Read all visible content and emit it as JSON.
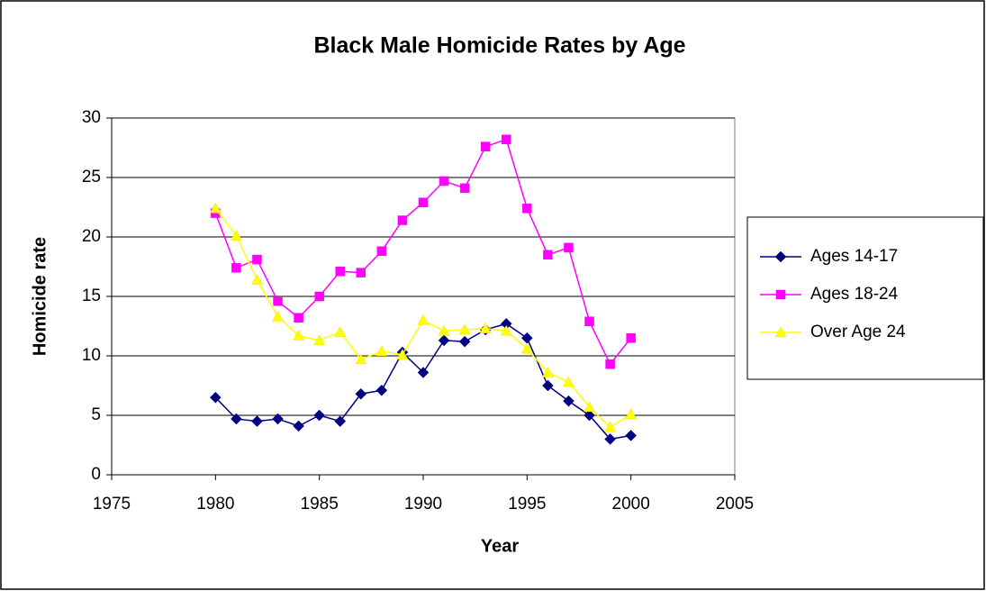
{
  "chart_data": {
    "type": "line",
    "title": "Black Male Homicide Rates by Age",
    "x_label": "Year",
    "y_label": "Homicide rate",
    "x": [
      1980,
      1981,
      1982,
      1983,
      1984,
      1985,
      1986,
      1987,
      1988,
      1989,
      1990,
      1991,
      1992,
      1993,
      1994,
      1995,
      1996,
      1997,
      1998,
      1999,
      2000
    ],
    "series": [
      {
        "name": "Ages 14-17",
        "color": "#000080",
        "marker": "diamond",
        "values": [
          6.5,
          4.7,
          4.5,
          4.7,
          4.1,
          5.0,
          4.5,
          6.8,
          7.1,
          10.3,
          8.6,
          11.3,
          11.2,
          12.2,
          12.7,
          11.5,
          7.5,
          6.2,
          5.0,
          3.0,
          3.3
        ]
      },
      {
        "name": "Ages 18-24",
        "color": "#ff00ff",
        "marker": "square",
        "values": [
          22.0,
          17.4,
          18.1,
          14.6,
          13.2,
          15.0,
          17.1,
          17.0,
          18.8,
          21.4,
          22.9,
          24.7,
          24.1,
          27.6,
          28.2,
          22.4,
          18.5,
          19.1,
          12.9,
          9.3,
          11.5
        ]
      },
      {
        "name": "Over Age 24",
        "color": "#ffff00",
        "marker": "triangle",
        "values": [
          22.4,
          20.1,
          16.4,
          13.3,
          11.7,
          11.3,
          12.0,
          9.7,
          10.4,
          10.1,
          13.0,
          12.1,
          12.2,
          12.3,
          12.1,
          10.6,
          8.6,
          7.8,
          5.7,
          4.0,
          5.1
        ]
      }
    ],
    "xlim": [
      1975,
      2005
    ],
    "xticks": [
      1975,
      1980,
      1985,
      1990,
      1995,
      2000,
      2005
    ],
    "ylim": [
      0,
      30
    ],
    "yticks": [
      0,
      5,
      10,
      15,
      20,
      25,
      30
    ],
    "grid": true,
    "legend": "right"
  }
}
